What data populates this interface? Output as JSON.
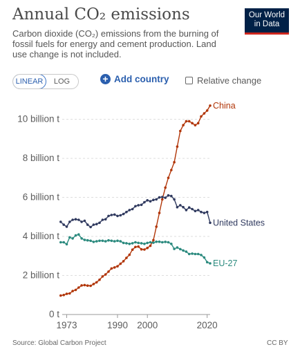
{
  "header": {
    "title": "Annual CO₂ emissions",
    "subtitle": "Carbon dioxide (CO₂) emissions from the burning of fossil fuels for energy and cement production. Land use change is not included.",
    "logo_line1": "Our World",
    "logo_line2": "in Data"
  },
  "controls": {
    "linear_label": "LINEAR",
    "log_label": "LOG",
    "add_country_label": "Add country",
    "relative_change_label": "Relative change"
  },
  "footer": {
    "source": "Source: Global Carbon Project",
    "license": "CC BY"
  },
  "colors": {
    "china": "#b13507",
    "united_states": "#303a5f",
    "eu27": "#2b8a7e",
    "grid": "#dddddd",
    "axis_text": "#5b5b5b"
  },
  "chart_data": {
    "type": "line",
    "ylim": [
      0,
      10.8
    ],
    "xlim": [
      1971.5,
      2021
    ],
    "y_ticks": [
      {
        "value": 0,
        "label": "0 t"
      },
      {
        "value": 2,
        "label": "2 billion t"
      },
      {
        "value": 4,
        "label": "4 billion t"
      },
      {
        "value": 6,
        "label": "6 billion t"
      },
      {
        "value": 8,
        "label": "8 billion t"
      },
      {
        "value": 10,
        "label": "10 billion t"
      }
    ],
    "x_ticks": [
      {
        "value": 1973,
        "label": "1973"
      },
      {
        "value": 1990,
        "label": "1990"
      },
      {
        "value": 2000,
        "label": "2000"
      },
      {
        "value": 2020,
        "label": "2020"
      }
    ],
    "grid": true,
    "legend": "inline-right",
    "series": [
      {
        "name": "China",
        "color": "#b13507",
        "points": [
          [
            1971,
            0.97
          ],
          [
            1972,
            1.0
          ],
          [
            1973,
            1.06
          ],
          [
            1974,
            1.08
          ],
          [
            1975,
            1.2
          ],
          [
            1976,
            1.26
          ],
          [
            1977,
            1.38
          ],
          [
            1978,
            1.49
          ],
          [
            1979,
            1.51
          ],
          [
            1980,
            1.48
          ],
          [
            1981,
            1.47
          ],
          [
            1982,
            1.56
          ],
          [
            1983,
            1.65
          ],
          [
            1984,
            1.78
          ],
          [
            1985,
            1.95
          ],
          [
            1986,
            2.05
          ],
          [
            1987,
            2.2
          ],
          [
            1988,
            2.36
          ],
          [
            1989,
            2.41
          ],
          [
            1990,
            2.47
          ],
          [
            1991,
            2.6
          ],
          [
            1992,
            2.73
          ],
          [
            1993,
            2.9
          ],
          [
            1994,
            3.06
          ],
          [
            1995,
            3.32
          ],
          [
            1996,
            3.46
          ],
          [
            1997,
            3.48
          ],
          [
            1998,
            3.34
          ],
          [
            1999,
            3.33
          ],
          [
            2000,
            3.41
          ],
          [
            2001,
            3.52
          ],
          [
            2002,
            3.81
          ],
          [
            2003,
            4.5
          ],
          [
            2004,
            5.2
          ],
          [
            2005,
            5.9
          ],
          [
            2006,
            6.5
          ],
          [
            2007,
            7.0
          ],
          [
            2008,
            7.4
          ],
          [
            2009,
            7.8
          ],
          [
            2010,
            8.6
          ],
          [
            2011,
            9.4
          ],
          [
            2012,
            9.7
          ],
          [
            2013,
            9.9
          ],
          [
            2014,
            9.9
          ],
          [
            2015,
            9.8
          ],
          [
            2016,
            9.7
          ],
          [
            2017,
            9.8
          ],
          [
            2018,
            10.15
          ],
          [
            2019,
            10.3
          ],
          [
            2020,
            10.45
          ],
          [
            2021,
            10.7
          ]
        ]
      },
      {
        "name": "United States",
        "color": "#303a5f",
        "points": [
          [
            1971,
            4.75
          ],
          [
            1972,
            4.6
          ],
          [
            1973,
            4.5
          ],
          [
            1974,
            4.75
          ],
          [
            1975,
            4.85
          ],
          [
            1976,
            4.88
          ],
          [
            1977,
            4.85
          ],
          [
            1978,
            4.75
          ],
          [
            1979,
            4.8
          ],
          [
            1980,
            4.6
          ],
          [
            1981,
            4.48
          ],
          [
            1982,
            4.6
          ],
          [
            1983,
            4.63
          ],
          [
            1984,
            4.7
          ],
          [
            1985,
            4.85
          ],
          [
            1986,
            4.88
          ],
          [
            1987,
            5.05
          ],
          [
            1988,
            5.1
          ],
          [
            1989,
            5.12
          ],
          [
            1990,
            5.05
          ],
          [
            1991,
            5.08
          ],
          [
            1992,
            5.15
          ],
          [
            1993,
            5.25
          ],
          [
            1994,
            5.35
          ],
          [
            1995,
            5.4
          ],
          [
            1996,
            5.55
          ],
          [
            1997,
            5.6
          ],
          [
            1998,
            5.62
          ],
          [
            1999,
            5.75
          ],
          [
            2000,
            5.85
          ],
          [
            2001,
            5.8
          ],
          [
            2002,
            5.87
          ],
          [
            2003,
            5.9
          ],
          [
            2004,
            6.0
          ],
          [
            2005,
            6.02
          ],
          [
            2006,
            5.98
          ],
          [
            2007,
            6.1
          ],
          [
            2008,
            6.07
          ],
          [
            2009,
            5.9
          ],
          [
            2010,
            5.5
          ],
          [
            2011,
            5.6
          ],
          [
            2012,
            5.5
          ],
          [
            2013,
            5.35
          ],
          [
            2014,
            5.48
          ],
          [
            2015,
            5.4
          ],
          [
            2016,
            5.3
          ],
          [
            2017,
            5.35
          ],
          [
            2018,
            5.25
          ],
          [
            2019,
            5.2
          ],
          [
            2020,
            5.25
          ],
          [
            2021,
            4.7
          ]
        ]
      },
      {
        "name": "EU-27",
        "color": "#2b8a7e",
        "points": [
          [
            1971,
            3.7
          ],
          [
            1972,
            3.7
          ],
          [
            1973,
            3.6
          ],
          [
            1974,
            3.95
          ],
          [
            1975,
            3.9
          ],
          [
            1976,
            4.05
          ],
          [
            1977,
            4.1
          ],
          [
            1978,
            3.9
          ],
          [
            1979,
            3.82
          ],
          [
            1980,
            3.8
          ],
          [
            1981,
            3.78
          ],
          [
            1982,
            3.72
          ],
          [
            1983,
            3.75
          ],
          [
            1984,
            3.78
          ],
          [
            1985,
            3.78
          ],
          [
            1986,
            3.75
          ],
          [
            1987,
            3.8
          ],
          [
            1988,
            3.78
          ],
          [
            1989,
            3.75
          ],
          [
            1990,
            3.78
          ],
          [
            1991,
            3.75
          ],
          [
            1992,
            3.67
          ],
          [
            1993,
            3.65
          ],
          [
            1994,
            3.62
          ],
          [
            1995,
            3.65
          ],
          [
            1996,
            3.7
          ],
          [
            1997,
            3.67
          ],
          [
            1998,
            3.65
          ],
          [
            1999,
            3.62
          ],
          [
            2000,
            3.67
          ],
          [
            2001,
            3.7
          ],
          [
            2002,
            3.68
          ],
          [
            2003,
            3.73
          ],
          [
            2004,
            3.73
          ],
          [
            2005,
            3.7
          ],
          [
            2006,
            3.72
          ],
          [
            2007,
            3.7
          ],
          [
            2008,
            3.62
          ],
          [
            2009,
            3.36
          ],
          [
            2010,
            3.43
          ],
          [
            2011,
            3.35
          ],
          [
            2012,
            3.28
          ],
          [
            2013,
            3.22
          ],
          [
            2014,
            3.1
          ],
          [
            2015,
            3.12
          ],
          [
            2016,
            3.1
          ],
          [
            2017,
            3.1
          ],
          [
            2018,
            3.05
          ],
          [
            2019,
            2.92
          ],
          [
            2020,
            2.68
          ],
          [
            2021,
            2.62
          ]
        ]
      }
    ]
  }
}
